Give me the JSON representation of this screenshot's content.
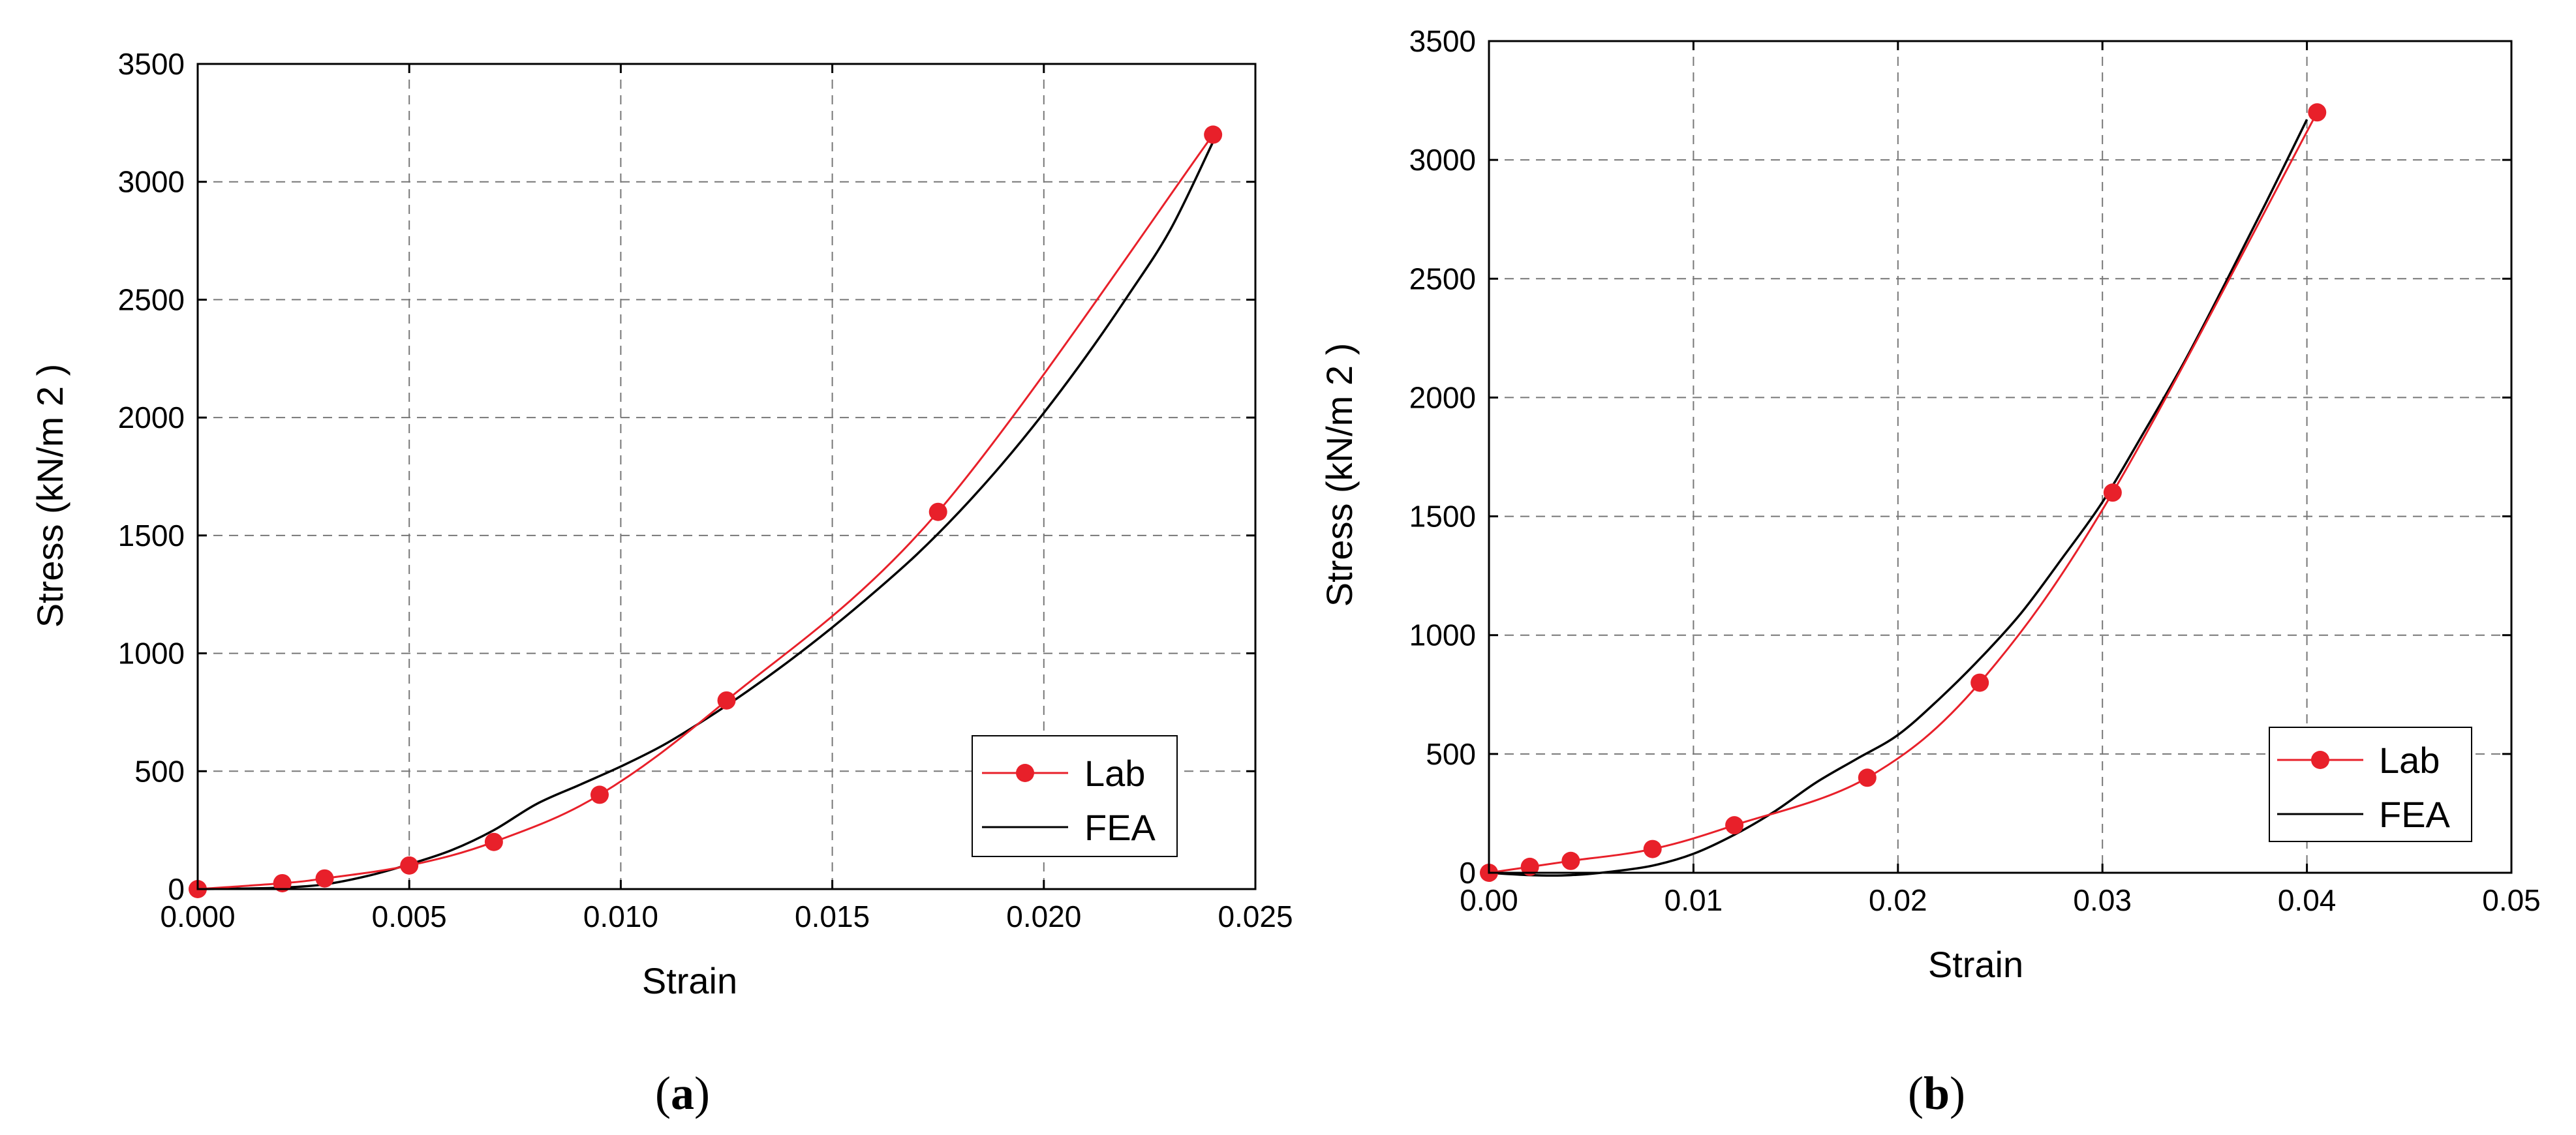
{
  "chart_data": [
    {
      "type": "line",
      "caption": "a",
      "xlabel": "Strain",
      "ylabel": "Stress (kN/m 2 )",
      "xlim": [
        0,
        0.025
      ],
      "ylim": [
        0,
        3500
      ],
      "xticks": [
        "0.000",
        "0.005",
        "0.010",
        "0.015",
        "0.020",
        "0.025"
      ],
      "yticks": [
        "0",
        "500",
        "1000",
        "1500",
        "2000",
        "2500",
        "3000",
        "3500"
      ],
      "grid": true,
      "legend_position": "bottom-right",
      "series": [
        {
          "name": "Lab",
          "color": "#e8202a",
          "marker": "circle",
          "x": [
            0.0,
            0.002,
            0.003,
            0.005,
            0.007,
            0.0095,
            0.0125,
            0.0175,
            0.024
          ],
          "y": [
            0,
            25,
            45,
            100,
            200,
            400,
            800,
            1600,
            3200
          ]
        },
        {
          "name": "FEA",
          "color": "#000000",
          "marker": "none",
          "x": [
            0.0,
            0.001,
            0.002,
            0.003,
            0.004,
            0.005,
            0.006,
            0.007,
            0.008,
            0.009,
            0.01,
            0.011,
            0.012,
            0.013,
            0.014,
            0.015,
            0.016,
            0.017,
            0.018,
            0.019,
            0.02,
            0.021,
            0.022,
            0.023,
            0.024
          ],
          "y": [
            0,
            2,
            6,
            20,
            55,
            105,
            165,
            250,
            360,
            440,
            520,
            610,
            720,
            840,
            970,
            1110,
            1260,
            1420,
            1600,
            1800,
            2020,
            2260,
            2520,
            2800,
            3170
          ]
        }
      ]
    },
    {
      "type": "line",
      "caption": "b",
      "xlabel": "Strain",
      "ylabel": "Stress (kN/m 2 )",
      "xlim": [
        0,
        0.05
      ],
      "ylim": [
        0,
        3500
      ],
      "xticks": [
        "0.00",
        "0.01",
        "0.02",
        "0.03",
        "0.04",
        "0.05"
      ],
      "yticks": [
        "0",
        "500",
        "1000",
        "1500",
        "2000",
        "2500",
        "3000",
        "3500"
      ],
      "grid": true,
      "legend_position": "bottom-right",
      "series": [
        {
          "name": "Lab",
          "color": "#e8202a",
          "marker": "circle",
          "x": [
            0.0,
            0.002,
            0.004,
            0.008,
            0.012,
            0.0185,
            0.024,
            0.0305,
            0.0405
          ],
          "y": [
            0,
            25,
            50,
            100,
            200,
            400,
            800,
            1600,
            3200
          ]
        },
        {
          "name": "FEA",
          "color": "#000000",
          "marker": "none",
          "x": [
            0.0,
            0.002,
            0.004,
            0.006,
            0.008,
            0.01,
            0.012,
            0.014,
            0.016,
            0.018,
            0.02,
            0.022,
            0.024,
            0.026,
            0.028,
            0.03,
            0.032,
            0.034,
            0.036,
            0.038,
            0.04
          ],
          "y": [
            0,
            -10,
            -10,
            5,
            30,
            80,
            160,
            260,
            380,
            480,
            580,
            730,
            900,
            1090,
            1320,
            1560,
            1850,
            2150,
            2480,
            2820,
            3170
          ]
        }
      ]
    }
  ]
}
